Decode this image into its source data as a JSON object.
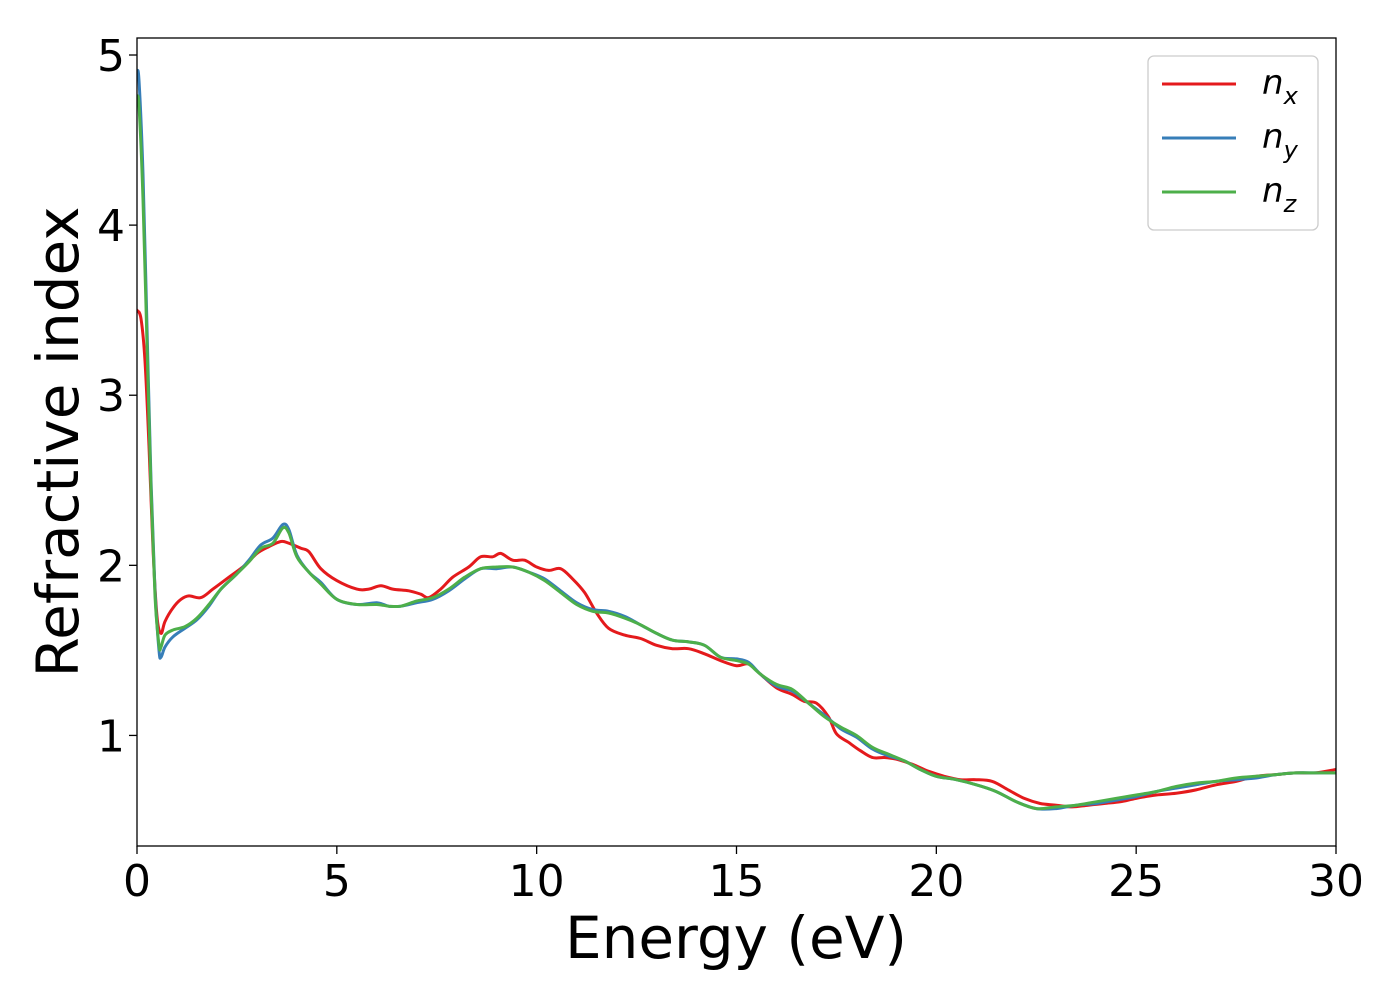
{
  "chart_data": {
    "type": "line",
    "xlabel": "Energy (eV)",
    "ylabel": "Refractive index",
    "xlim": [
      0,
      30
    ],
    "ylim": [
      0.35,
      5.1
    ],
    "xticks": [
      "0",
      "5",
      "10",
      "15",
      "20",
      "25",
      "30"
    ],
    "yticks": [
      "1",
      "2",
      "3",
      "4",
      "5"
    ],
    "grid": false,
    "legend_position": "top-right",
    "series": [
      {
        "name": "n",
        "subscript": "x",
        "color": "#e41a1c",
        "points": [
          [
            0,
            3.5
          ],
          [
            0.1,
            3.45
          ],
          [
            0.2,
            3.2
          ],
          [
            0.3,
            2.7
          ],
          [
            0.4,
            2.1
          ],
          [
            0.5,
            1.7
          ],
          [
            0.6,
            1.6
          ],
          [
            0.7,
            1.67
          ],
          [
            0.9,
            1.75
          ],
          [
            1.1,
            1.8
          ],
          [
            1.3,
            1.82
          ],
          [
            1.6,
            1.81
          ],
          [
            1.9,
            1.86
          ],
          [
            2.3,
            1.93
          ],
          [
            2.7,
            2.0
          ],
          [
            3.0,
            2.07
          ],
          [
            3.3,
            2.11
          ],
          [
            3.6,
            2.14
          ],
          [
            3.8,
            2.13
          ],
          [
            4.1,
            2.1
          ],
          [
            4.3,
            2.08
          ],
          [
            4.6,
            1.98
          ],
          [
            5.0,
            1.91
          ],
          [
            5.5,
            1.86
          ],
          [
            5.8,
            1.86
          ],
          [
            6.1,
            1.88
          ],
          [
            6.4,
            1.86
          ],
          [
            6.8,
            1.85
          ],
          [
            7.1,
            1.83
          ],
          [
            7.3,
            1.81
          ],
          [
            7.6,
            1.86
          ],
          [
            7.9,
            1.93
          ],
          [
            8.3,
            1.99
          ],
          [
            8.6,
            2.05
          ],
          [
            8.9,
            2.05
          ],
          [
            9.1,
            2.07
          ],
          [
            9.4,
            2.03
          ],
          [
            9.7,
            2.03
          ],
          [
            10.0,
            1.99
          ],
          [
            10.3,
            1.97
          ],
          [
            10.6,
            1.98
          ],
          [
            10.9,
            1.92
          ],
          [
            11.2,
            1.84
          ],
          [
            11.5,
            1.72
          ],
          [
            11.8,
            1.63
          ],
          [
            12.2,
            1.59
          ],
          [
            12.6,
            1.57
          ],
          [
            13.0,
            1.53
          ],
          [
            13.4,
            1.51
          ],
          [
            13.8,
            1.51
          ],
          [
            14.2,
            1.48
          ],
          [
            14.6,
            1.44
          ],
          [
            15.0,
            1.41
          ],
          [
            15.3,
            1.42
          ],
          [
            15.6,
            1.36
          ],
          [
            16.0,
            1.28
          ],
          [
            16.4,
            1.24
          ],
          [
            16.7,
            1.2
          ],
          [
            17.0,
            1.19
          ],
          [
            17.3,
            1.11
          ],
          [
            17.5,
            1.01
          ],
          [
            17.8,
            0.96
          ],
          [
            18.1,
            0.91
          ],
          [
            18.4,
            0.87
          ],
          [
            18.7,
            0.87
          ],
          [
            19.0,
            0.86
          ],
          [
            19.4,
            0.83
          ],
          [
            19.8,
            0.79
          ],
          [
            20.2,
            0.76
          ],
          [
            20.6,
            0.74
          ],
          [
            21.0,
            0.74
          ],
          [
            21.4,
            0.73
          ],
          [
            21.8,
            0.68
          ],
          [
            22.2,
            0.63
          ],
          [
            22.6,
            0.6
          ],
          [
            23.0,
            0.59
          ],
          [
            23.4,
            0.58
          ],
          [
            23.8,
            0.59
          ],
          [
            24.2,
            0.6
          ],
          [
            24.6,
            0.61
          ],
          [
            25.0,
            0.63
          ],
          [
            25.5,
            0.65
          ],
          [
            26.0,
            0.66
          ],
          [
            26.5,
            0.68
          ],
          [
            27.0,
            0.71
          ],
          [
            27.5,
            0.73
          ],
          [
            28.0,
            0.76
          ],
          [
            28.5,
            0.77
          ],
          [
            29.0,
            0.78
          ],
          [
            29.5,
            0.78
          ],
          [
            30.0,
            0.8
          ]
        ]
      },
      {
        "name": "n",
        "subscript": "y",
        "color": "#377eb8",
        "points": [
          [
            0,
            4.9
          ],
          [
            0.05,
            4.85
          ],
          [
            0.15,
            4.3
          ],
          [
            0.25,
            3.4
          ],
          [
            0.35,
            2.5
          ],
          [
            0.45,
            1.85
          ],
          [
            0.55,
            1.5
          ],
          [
            0.6,
            1.46
          ],
          [
            0.7,
            1.52
          ],
          [
            0.9,
            1.58
          ],
          [
            1.2,
            1.63
          ],
          [
            1.5,
            1.68
          ],
          [
            1.8,
            1.76
          ],
          [
            2.1,
            1.86
          ],
          [
            2.5,
            1.95
          ],
          [
            2.8,
            2.03
          ],
          [
            3.1,
            2.12
          ],
          [
            3.4,
            2.16
          ],
          [
            3.65,
            2.24
          ],
          [
            3.8,
            2.21
          ],
          [
            4.0,
            2.06
          ],
          [
            4.3,
            1.96
          ],
          [
            4.6,
            1.9
          ],
          [
            5.0,
            1.8
          ],
          [
            5.5,
            1.77
          ],
          [
            6.0,
            1.78
          ],
          [
            6.3,
            1.76
          ],
          [
            6.6,
            1.76
          ],
          [
            7.0,
            1.78
          ],
          [
            7.4,
            1.8
          ],
          [
            7.8,
            1.85
          ],
          [
            8.2,
            1.92
          ],
          [
            8.6,
            1.98
          ],
          [
            9.0,
            1.98
          ],
          [
            9.4,
            1.99
          ],
          [
            9.8,
            1.96
          ],
          [
            10.2,
            1.92
          ],
          [
            10.6,
            1.85
          ],
          [
            11.0,
            1.78
          ],
          [
            11.4,
            1.74
          ],
          [
            11.8,
            1.73
          ],
          [
            12.2,
            1.7
          ],
          [
            12.6,
            1.65
          ],
          [
            13.0,
            1.6
          ],
          [
            13.4,
            1.56
          ],
          [
            13.8,
            1.55
          ],
          [
            14.2,
            1.53
          ],
          [
            14.6,
            1.46
          ],
          [
            15.0,
            1.45
          ],
          [
            15.3,
            1.43
          ],
          [
            15.6,
            1.36
          ],
          [
            16.0,
            1.29
          ],
          [
            16.4,
            1.26
          ],
          [
            16.8,
            1.19
          ],
          [
            17.2,
            1.12
          ],
          [
            17.6,
            1.04
          ],
          [
            18.0,
            0.99
          ],
          [
            18.4,
            0.92
          ],
          [
            18.8,
            0.88
          ],
          [
            19.2,
            0.85
          ],
          [
            19.6,
            0.8
          ],
          [
            20.0,
            0.76
          ],
          [
            20.5,
            0.74
          ],
          [
            21.0,
            0.71
          ],
          [
            21.5,
            0.67
          ],
          [
            22.0,
            0.61
          ],
          [
            22.5,
            0.57
          ],
          [
            23.0,
            0.57
          ],
          [
            23.5,
            0.59
          ],
          [
            24.0,
            0.6
          ],
          [
            24.5,
            0.62
          ],
          [
            25.0,
            0.64
          ],
          [
            25.5,
            0.67
          ],
          [
            26.0,
            0.69
          ],
          [
            26.5,
            0.71
          ],
          [
            27.0,
            0.73
          ],
          [
            27.5,
            0.74
          ],
          [
            28.0,
            0.75
          ],
          [
            28.5,
            0.77
          ],
          [
            29.0,
            0.78
          ],
          [
            29.5,
            0.78
          ],
          [
            30.0,
            0.78
          ]
        ]
      },
      {
        "name": "n",
        "subscript": "z",
        "color": "#4daf4a",
        "points": [
          [
            0,
            4.75
          ],
          [
            0.05,
            4.7
          ],
          [
            0.15,
            4.15
          ],
          [
            0.25,
            3.3
          ],
          [
            0.35,
            2.45
          ],
          [
            0.45,
            1.82
          ],
          [
            0.55,
            1.53
          ],
          [
            0.6,
            1.52
          ],
          [
            0.7,
            1.59
          ],
          [
            0.9,
            1.62
          ],
          [
            1.2,
            1.64
          ],
          [
            1.5,
            1.69
          ],
          [
            1.8,
            1.77
          ],
          [
            2.1,
            1.86
          ],
          [
            2.5,
            1.95
          ],
          [
            2.8,
            2.02
          ],
          [
            3.1,
            2.1
          ],
          [
            3.4,
            2.13
          ],
          [
            3.65,
            2.22
          ],
          [
            3.8,
            2.19
          ],
          [
            4.0,
            2.05
          ],
          [
            4.3,
            1.96
          ],
          [
            4.6,
            1.89
          ],
          [
            5.0,
            1.8
          ],
          [
            5.5,
            1.77
          ],
          [
            6.0,
            1.77
          ],
          [
            6.3,
            1.76
          ],
          [
            6.6,
            1.76
          ],
          [
            7.0,
            1.79
          ],
          [
            7.4,
            1.81
          ],
          [
            7.8,
            1.86
          ],
          [
            8.2,
            1.93
          ],
          [
            8.6,
            1.98
          ],
          [
            9.0,
            1.99
          ],
          [
            9.4,
            1.99
          ],
          [
            9.8,
            1.96
          ],
          [
            10.2,
            1.91
          ],
          [
            10.6,
            1.84
          ],
          [
            11.0,
            1.77
          ],
          [
            11.4,
            1.73
          ],
          [
            11.8,
            1.72
          ],
          [
            12.2,
            1.69
          ],
          [
            12.6,
            1.65
          ],
          [
            13.0,
            1.6
          ],
          [
            13.4,
            1.56
          ],
          [
            13.8,
            1.55
          ],
          [
            14.2,
            1.53
          ],
          [
            14.6,
            1.46
          ],
          [
            15.0,
            1.44
          ],
          [
            15.3,
            1.42
          ],
          [
            15.6,
            1.36
          ],
          [
            16.0,
            1.3
          ],
          [
            16.4,
            1.27
          ],
          [
            16.8,
            1.19
          ],
          [
            17.2,
            1.11
          ],
          [
            17.6,
            1.05
          ],
          [
            18.0,
            1.0
          ],
          [
            18.4,
            0.93
          ],
          [
            18.8,
            0.89
          ],
          [
            19.2,
            0.85
          ],
          [
            19.6,
            0.8
          ],
          [
            20.0,
            0.76
          ],
          [
            20.5,
            0.74
          ],
          [
            21.0,
            0.71
          ],
          [
            21.5,
            0.67
          ],
          [
            22.0,
            0.61
          ],
          [
            22.5,
            0.57
          ],
          [
            23.0,
            0.58
          ],
          [
            23.5,
            0.59
          ],
          [
            24.0,
            0.61
          ],
          [
            24.5,
            0.63
          ],
          [
            25.0,
            0.65
          ],
          [
            25.5,
            0.67
          ],
          [
            26.0,
            0.7
          ],
          [
            26.5,
            0.72
          ],
          [
            27.0,
            0.73
          ],
          [
            27.5,
            0.75
          ],
          [
            28.0,
            0.76
          ],
          [
            28.5,
            0.77
          ],
          [
            29.0,
            0.78
          ],
          [
            29.5,
            0.78
          ],
          [
            30.0,
            0.78
          ]
        ]
      }
    ]
  }
}
